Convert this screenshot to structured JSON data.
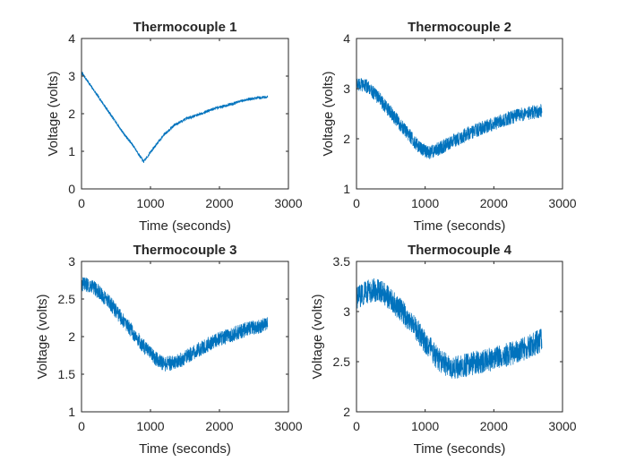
{
  "chart_data": [
    {
      "type": "line",
      "title": "Thermocouple 1",
      "xlabel": "Time (seconds)",
      "ylabel": "Voltage (volts)",
      "xlim": [
        0,
        3000
      ],
      "ylim": [
        0,
        4
      ],
      "xticks": [
        0,
        1000,
        2000,
        3000
      ],
      "yticks": [
        0,
        1,
        2,
        3,
        4
      ],
      "line_color": "#0072BD",
      "noise_amplitude": 0.04,
      "series": [
        {
          "x": [
            0,
            150,
            300,
            450,
            600,
            750,
            900,
            1050,
            1200,
            1350,
            1500,
            1650,
            1800,
            1950,
            2100,
            2250,
            2400,
            2550,
            2700
          ],
          "values": [
            3.1,
            2.7,
            2.3,
            1.9,
            1.5,
            1.15,
            0.72,
            1.1,
            1.45,
            1.7,
            1.85,
            1.95,
            2.05,
            2.15,
            2.22,
            2.3,
            2.38,
            2.42,
            2.45
          ]
        }
      ]
    },
    {
      "type": "line",
      "title": "Thermocouple 2",
      "xlabel": "Time (seconds)",
      "ylabel": "Voltage (volts)",
      "xlim": [
        0,
        3000
      ],
      "ylim": [
        1,
        4
      ],
      "xticks": [
        0,
        1000,
        2000,
        3000
      ],
      "yticks": [
        1,
        2,
        3,
        4
      ],
      "line_color": "#0072BD",
      "noise_amplitude": 0.14,
      "series": [
        {
          "x": [
            0,
            150,
            300,
            450,
            600,
            750,
            900,
            1050,
            1200,
            1350,
            1500,
            1650,
            1800,
            1950,
            2100,
            2250,
            2400,
            2550,
            2700
          ],
          "values": [
            3.1,
            3.05,
            2.85,
            2.6,
            2.35,
            2.1,
            1.85,
            1.72,
            1.8,
            1.92,
            2.02,
            2.12,
            2.2,
            2.28,
            2.35,
            2.42,
            2.48,
            2.52,
            2.56
          ]
        }
      ]
    },
    {
      "type": "line",
      "title": "Thermocouple 3",
      "xlabel": "Time (seconds)",
      "ylabel": "Voltage (volts)",
      "xlim": [
        0,
        3000
      ],
      "ylim": [
        1,
        3
      ],
      "xticks": [
        0,
        1000,
        2000,
        3000
      ],
      "yticks": [
        1,
        1.5,
        2,
        2.5,
        3
      ],
      "line_color": "#0072BD",
      "noise_amplitude": 0.1,
      "series": [
        {
          "x": [
            0,
            150,
            300,
            450,
            600,
            750,
            900,
            1050,
            1200,
            1350,
            1500,
            1650,
            1800,
            1950,
            2100,
            2250,
            2400,
            2550,
            2700
          ],
          "values": [
            2.7,
            2.68,
            2.55,
            2.4,
            2.22,
            2.05,
            1.87,
            1.72,
            1.63,
            1.65,
            1.72,
            1.8,
            1.88,
            1.95,
            2.0,
            2.05,
            2.1,
            2.13,
            2.17
          ]
        }
      ]
    },
    {
      "type": "line",
      "title": "Thermocouple 4",
      "xlabel": "Time (seconds)",
      "ylabel": "Voltage (volts)",
      "xlim": [
        0,
        3000
      ],
      "ylim": [
        2,
        3.5
      ],
      "xticks": [
        0,
        1000,
        2000,
        3000
      ],
      "yticks": [
        2,
        2.5,
        3,
        3.5
      ],
      "line_color": "#0072BD",
      "noise_amplitude": 0.12,
      "series": [
        {
          "x": [
            0,
            150,
            300,
            450,
            600,
            750,
            900,
            1050,
            1200,
            1350,
            1500,
            1650,
            1800,
            1950,
            2100,
            2250,
            2400,
            2550,
            2700
          ],
          "values": [
            3.12,
            3.2,
            3.22,
            3.15,
            3.05,
            2.93,
            2.8,
            2.65,
            2.52,
            2.45,
            2.45,
            2.47,
            2.5,
            2.52,
            2.55,
            2.58,
            2.62,
            2.66,
            2.72
          ]
        }
      ]
    }
  ]
}
